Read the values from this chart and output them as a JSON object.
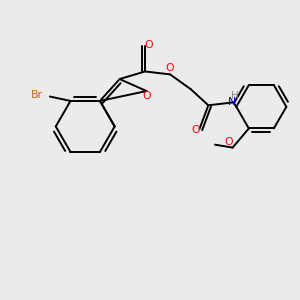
{
  "background_color": "#ebebeb",
  "atom_colors": {
    "C": "#000000",
    "O": "#ff0000",
    "N": "#0000bb",
    "Br": "#cc6600",
    "H": "#888888"
  },
  "bond_color": "#000000",
  "bond_width": 1.4,
  "figsize": [
    3.0,
    3.0
  ],
  "dpi": 100,
  "xlim": [
    0.0,
    10.0
  ],
  "ylim": [
    0.0,
    10.0
  ]
}
